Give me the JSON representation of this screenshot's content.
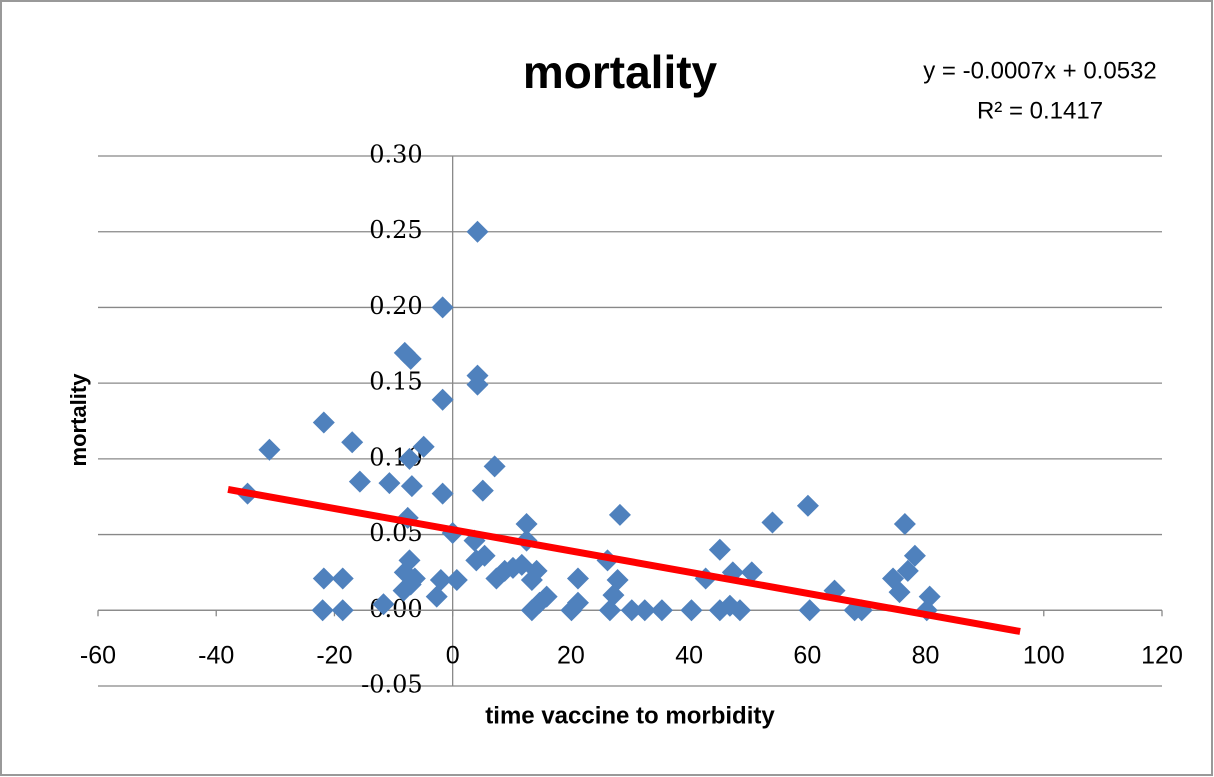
{
  "chart_data": {
    "type": "scatter",
    "title": "mortality",
    "equation": "y = -0.0007x + 0.0532",
    "r_squared": "R² = 0.1417",
    "xlabel": "time vaccine to morbidity",
    "ylabel": "mortality",
    "color": "#4f81bd",
    "x": [
      -34.7,
      -31,
      -21.8,
      -21.8,
      -22,
      -18.6,
      -18.6,
      -17,
      -15.7,
      -11.7,
      -10.7,
      -8.1,
      -7.1,
      -4.9,
      -7.3,
      -6.9,
      -7.6,
      -8.1,
      -7.3,
      -8.3,
      -7.1,
      -6.4,
      -2.7,
      -2,
      -1.7,
      -1.7,
      -1.7,
      0,
      0.7,
      4.2,
      4.2,
      4.2,
      3.7,
      4,
      5.1,
      7.1,
      5.4,
      7.4,
      8.8,
      10.2,
      12.5,
      12.5,
      11.7,
      13.4,
      14.2,
      13.4,
      14.7,
      15.9,
      21.2,
      21.2,
      20.1,
      26.2,
      26.6,
      27.2,
      27.9,
      28.3,
      30.3,
      32.5,
      35.4,
      40.4,
      42.8,
      45.2,
      45.2,
      47.4,
      46.9,
      48.6,
      50.6,
      54.1,
      60.1,
      60.4,
      64.6,
      68,
      69.2,
      74.5,
      75.6,
      76.5,
      77,
      78.2,
      80.7,
      80.2
    ],
    "values": [
      0.077,
      0.106,
      0.124,
      0.021,
      0,
      0.021,
      0,
      0.111,
      0.085,
      0.004,
      0.084,
      0.17,
      0.166,
      0.108,
      0.1,
      0.082,
      0.061,
      0.025,
      0.033,
      0.013,
      0.017,
      0.021,
      0.009,
      0.02,
      0.139,
      0.2,
      0.077,
      0.051,
      0.02,
      0.25,
      0.155,
      0.149,
      0.046,
      0.033,
      0.079,
      0.095,
      0.036,
      0.021,
      0.026,
      0.028,
      0.057,
      0.046,
      0.03,
      0.02,
      0.026,
      0,
      0.005,
      0.009,
      0.021,
      0.005,
      0,
      0.033,
      0,
      0.01,
      0.02,
      0.063,
      0,
      0,
      0,
      0,
      0.021,
      0.04,
      0,
      0.025,
      0.003,
      0,
      0.025,
      0.058,
      0.069,
      0,
      0.013,
      0,
      0,
      0.021,
      0.012,
      0.057,
      0.026,
      0.036,
      0.009,
      0
    ],
    "trendline": {
      "x": [
        -38,
        96
      ],
      "y": [
        0.0798,
        -0.014
      ],
      "color": "#ff0000"
    },
    "xlim": [
      -60,
      120
    ],
    "xticks": [
      -60,
      -40,
      -20,
      0,
      20,
      40,
      60,
      80,
      100,
      120
    ],
    "ylim": [
      -0.05,
      0.3
    ],
    "yticks": [
      {
        "value": -0.05,
        "label": "-0.05"
      },
      {
        "value": 0,
        "label": "0.00"
      },
      0.05,
      {
        "value": 0.1,
        "label": "0.10"
      },
      0.15,
      {
        "value": 0.2,
        "label": "0.20"
      },
      0.25,
      {
        "value": 0.3,
        "label": "0.30"
      }
    ],
    "grid": true
  }
}
